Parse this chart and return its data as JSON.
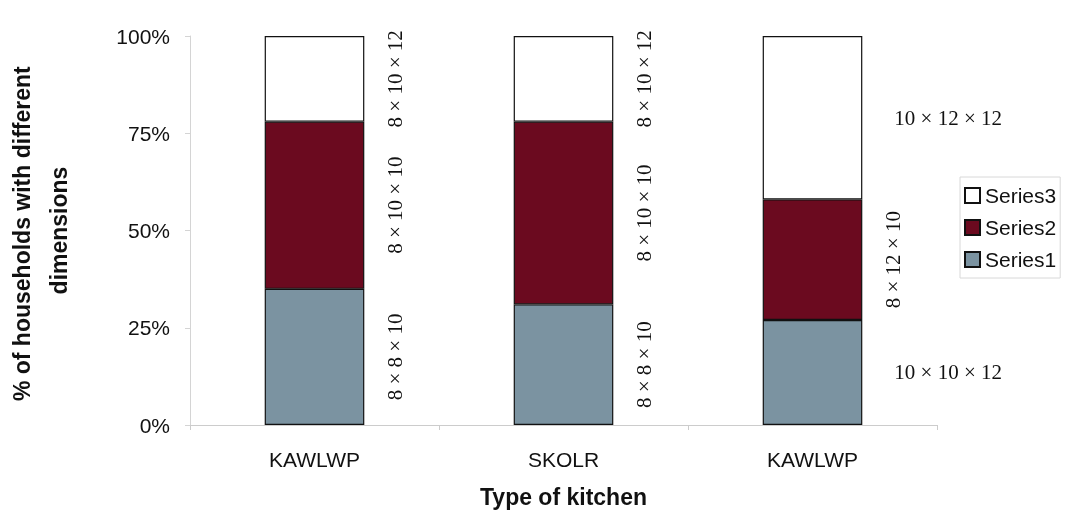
{
  "chart_data": {
    "type": "bar",
    "stacked": true,
    "categories": [
      "KAWLWP",
      "SKOLR",
      "KAWLWP"
    ],
    "series": [
      {
        "name": "Series1",
        "color": "#7b93a1",
        "values": [
          35,
          31,
          27
        ]
      },
      {
        "name": "Series2",
        "color": "#6b0a1f",
        "values": [
          43,
          47,
          31
        ]
      },
      {
        "name": "Series3",
        "color": "#ffffff",
        "values": [
          22,
          22,
          42
        ]
      }
    ],
    "ylim": [
      0,
      100
    ],
    "yticks": [
      {
        "value": 0,
        "label": "0%"
      },
      {
        "value": 25,
        "label": "25%"
      },
      {
        "value": 50,
        "label": "50%"
      },
      {
        "value": 75,
        "label": "75%"
      },
      {
        "value": 100,
        "label": "100%"
      }
    ],
    "xlabel": "Type of kitchen",
    "ylabel": "% of households with different dimensions",
    "grid": false,
    "legend": "right",
    "annotations": [
      "8 × 8 × 10",
      "8 × 10 × 10",
      "8 × 10 × 12",
      "8 × 8 × 10",
      "8 × 10 × 10",
      "8 × 10 × 12",
      "10 × 10 × 12",
      "8 × 12 × 10",
      "10 × 12 × 12"
    ]
  }
}
